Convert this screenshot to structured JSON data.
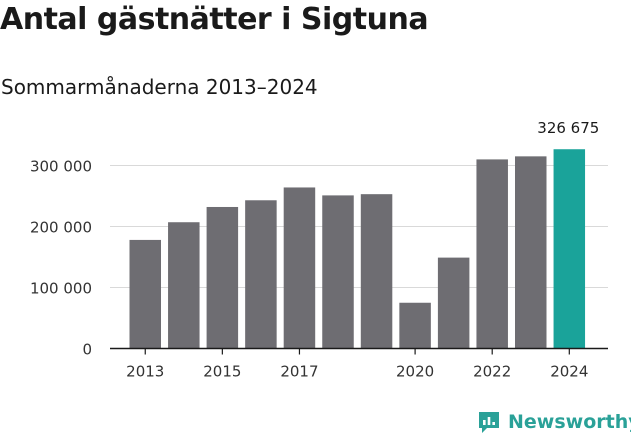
{
  "header": {
    "title": "Antal gästnätter i Sigtuna",
    "subtitle": "Sommarmånaderna 2013–2024"
  },
  "brand": {
    "name": "Newsworthy",
    "icon": "newsworthy-logo-icon",
    "color": "#2aa198"
  },
  "colors": {
    "bar": "#6e6d72",
    "highlight": "#1aa39a",
    "grid": "#d9d9d9",
    "axis": "#1a1a1a"
  },
  "chart_data": {
    "type": "bar",
    "title": "Antal gästnätter i Sigtuna",
    "subtitle": "Sommarmånaderna 2013–2024",
    "categories": [
      "2013",
      "2014",
      "2015",
      "2016",
      "2017",
      "2018",
      "2019",
      "2020",
      "2021",
      "2022",
      "2023",
      "2024"
    ],
    "values": [
      178000,
      207000,
      232000,
      243000,
      264000,
      251000,
      253000,
      75000,
      149000,
      310000,
      315000,
      326675
    ],
    "highlight_index": 11,
    "value_labels": [
      {
        "index": 11,
        "text": "326 675"
      }
    ],
    "xtick_labels": [
      "2013",
      "2015",
      "2017",
      "2020",
      "2022",
      "2024"
    ],
    "yticks": [
      0,
      100000,
      200000,
      300000
    ],
    "ytick_labels": [
      "0",
      "100 000",
      "200 000",
      "300 000"
    ],
    "ylim": [
      0,
      326675
    ],
    "xlabel": "",
    "ylabel": "",
    "grid": true,
    "legend": "none"
  }
}
